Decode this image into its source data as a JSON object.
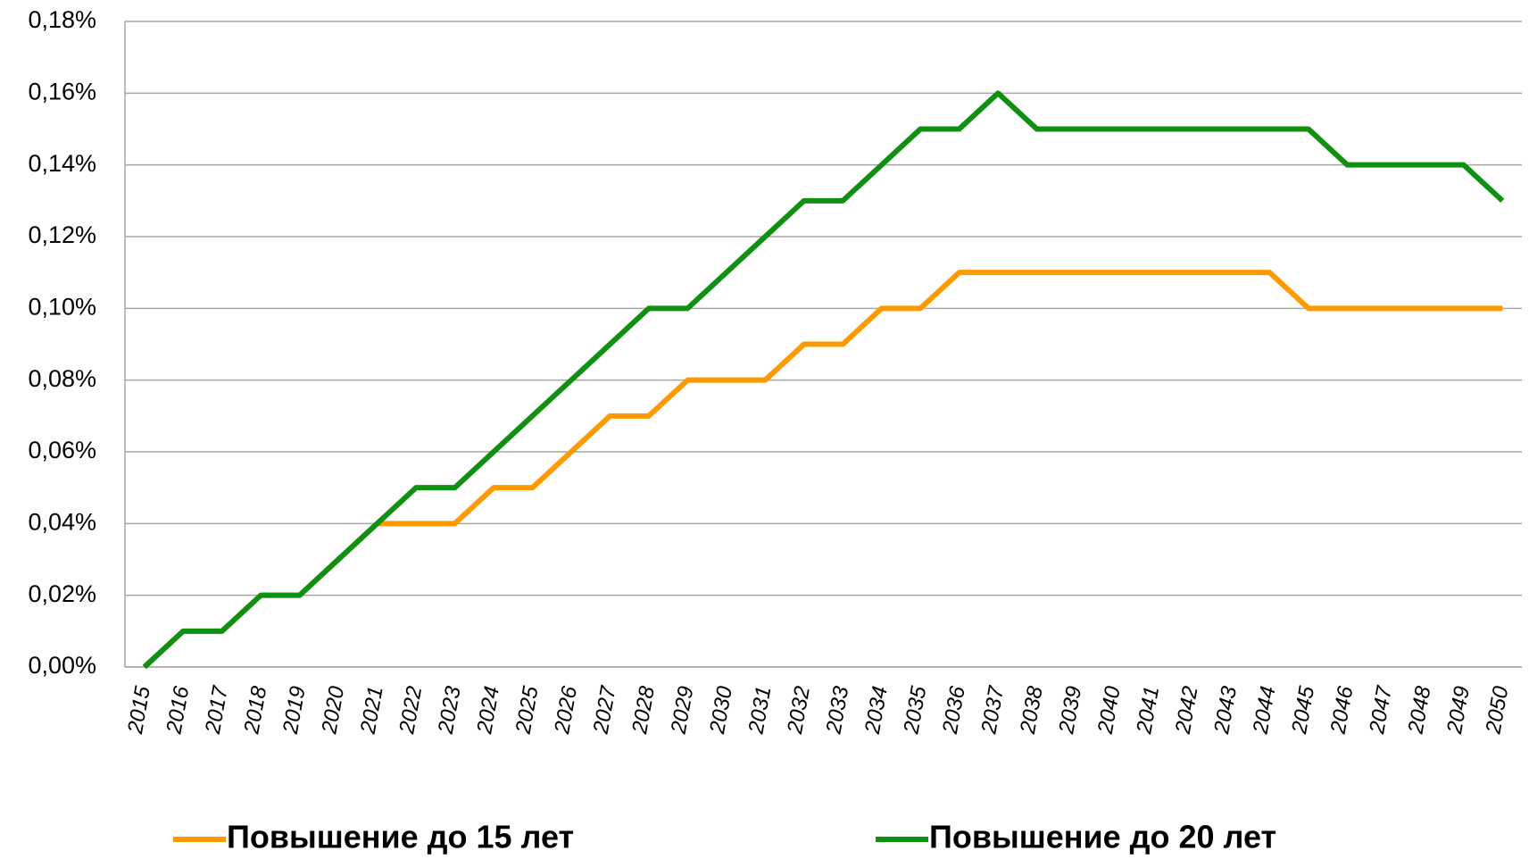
{
  "chart_data": {
    "type": "line",
    "categories": [
      "2015",
      "2016",
      "2017",
      "2018",
      "2019",
      "2020",
      "2021",
      "2022",
      "2023",
      "2024",
      "2025",
      "2026",
      "2027",
      "2028",
      "2029",
      "2030",
      "2031",
      "2032",
      "2033",
      "2034",
      "2035",
      "2036",
      "2037",
      "2038",
      "2039",
      "2040",
      "2041",
      "2042",
      "2043",
      "2044",
      "2045",
      "2046",
      "2047",
      "2048",
      "2049",
      "2050"
    ],
    "series": [
      {
        "name": "Повышение до 15 лет",
        "color": "#ff9900",
        "values": [
          0,
          0.01,
          0.01,
          0.02,
          0.02,
          0.03,
          0.04,
          0.04,
          0.04,
          0.05,
          0.05,
          0.06,
          0.07,
          0.07,
          0.08,
          0.08,
          0.08,
          0.09,
          0.09,
          0.1,
          0.1,
          0.11,
          0.11,
          0.11,
          0.11,
          0.11,
          0.11,
          0.11,
          0.11,
          0.11,
          0.1,
          0.1,
          0.1,
          0.1,
          0.1,
          0.1
        ]
      },
      {
        "name": "Повышение до 20 лет",
        "color": "#109010",
        "values": [
          0,
          0.01,
          0.01,
          0.02,
          0.02,
          0.03,
          0.04,
          0.05,
          0.05,
          0.06,
          0.07,
          0.08,
          0.09,
          0.1,
          0.1,
          0.11,
          0.12,
          0.13,
          0.13,
          0.14,
          0.15,
          0.15,
          0.16,
          0.15,
          0.15,
          0.15,
          0.15,
          0.15,
          0.15,
          0.15,
          0.15,
          0.14,
          0.14,
          0.14,
          0.14,
          0.13
        ]
      }
    ],
    "ylim": [
      0,
      0.18
    ],
    "yticks": [
      {
        "value": 0,
        "label": "0,00%"
      },
      {
        "value": 0.02,
        "label": "0,02%"
      },
      {
        "value": 0.04,
        "label": "0,04%"
      },
      {
        "value": 0.06,
        "label": "0,06%"
      },
      {
        "value": 0.08,
        "label": "0,08%"
      },
      {
        "value": 0.1,
        "label": "0,10%"
      },
      {
        "value": 0.12,
        "label": "0,12%"
      },
      {
        "value": 0.14,
        "label": "0,14%"
      },
      {
        "value": 0.16,
        "label": "0,16%"
      },
      {
        "value": 0.18,
        "label": "0,18%"
      }
    ],
    "grid": true,
    "legend": "bottom"
  }
}
